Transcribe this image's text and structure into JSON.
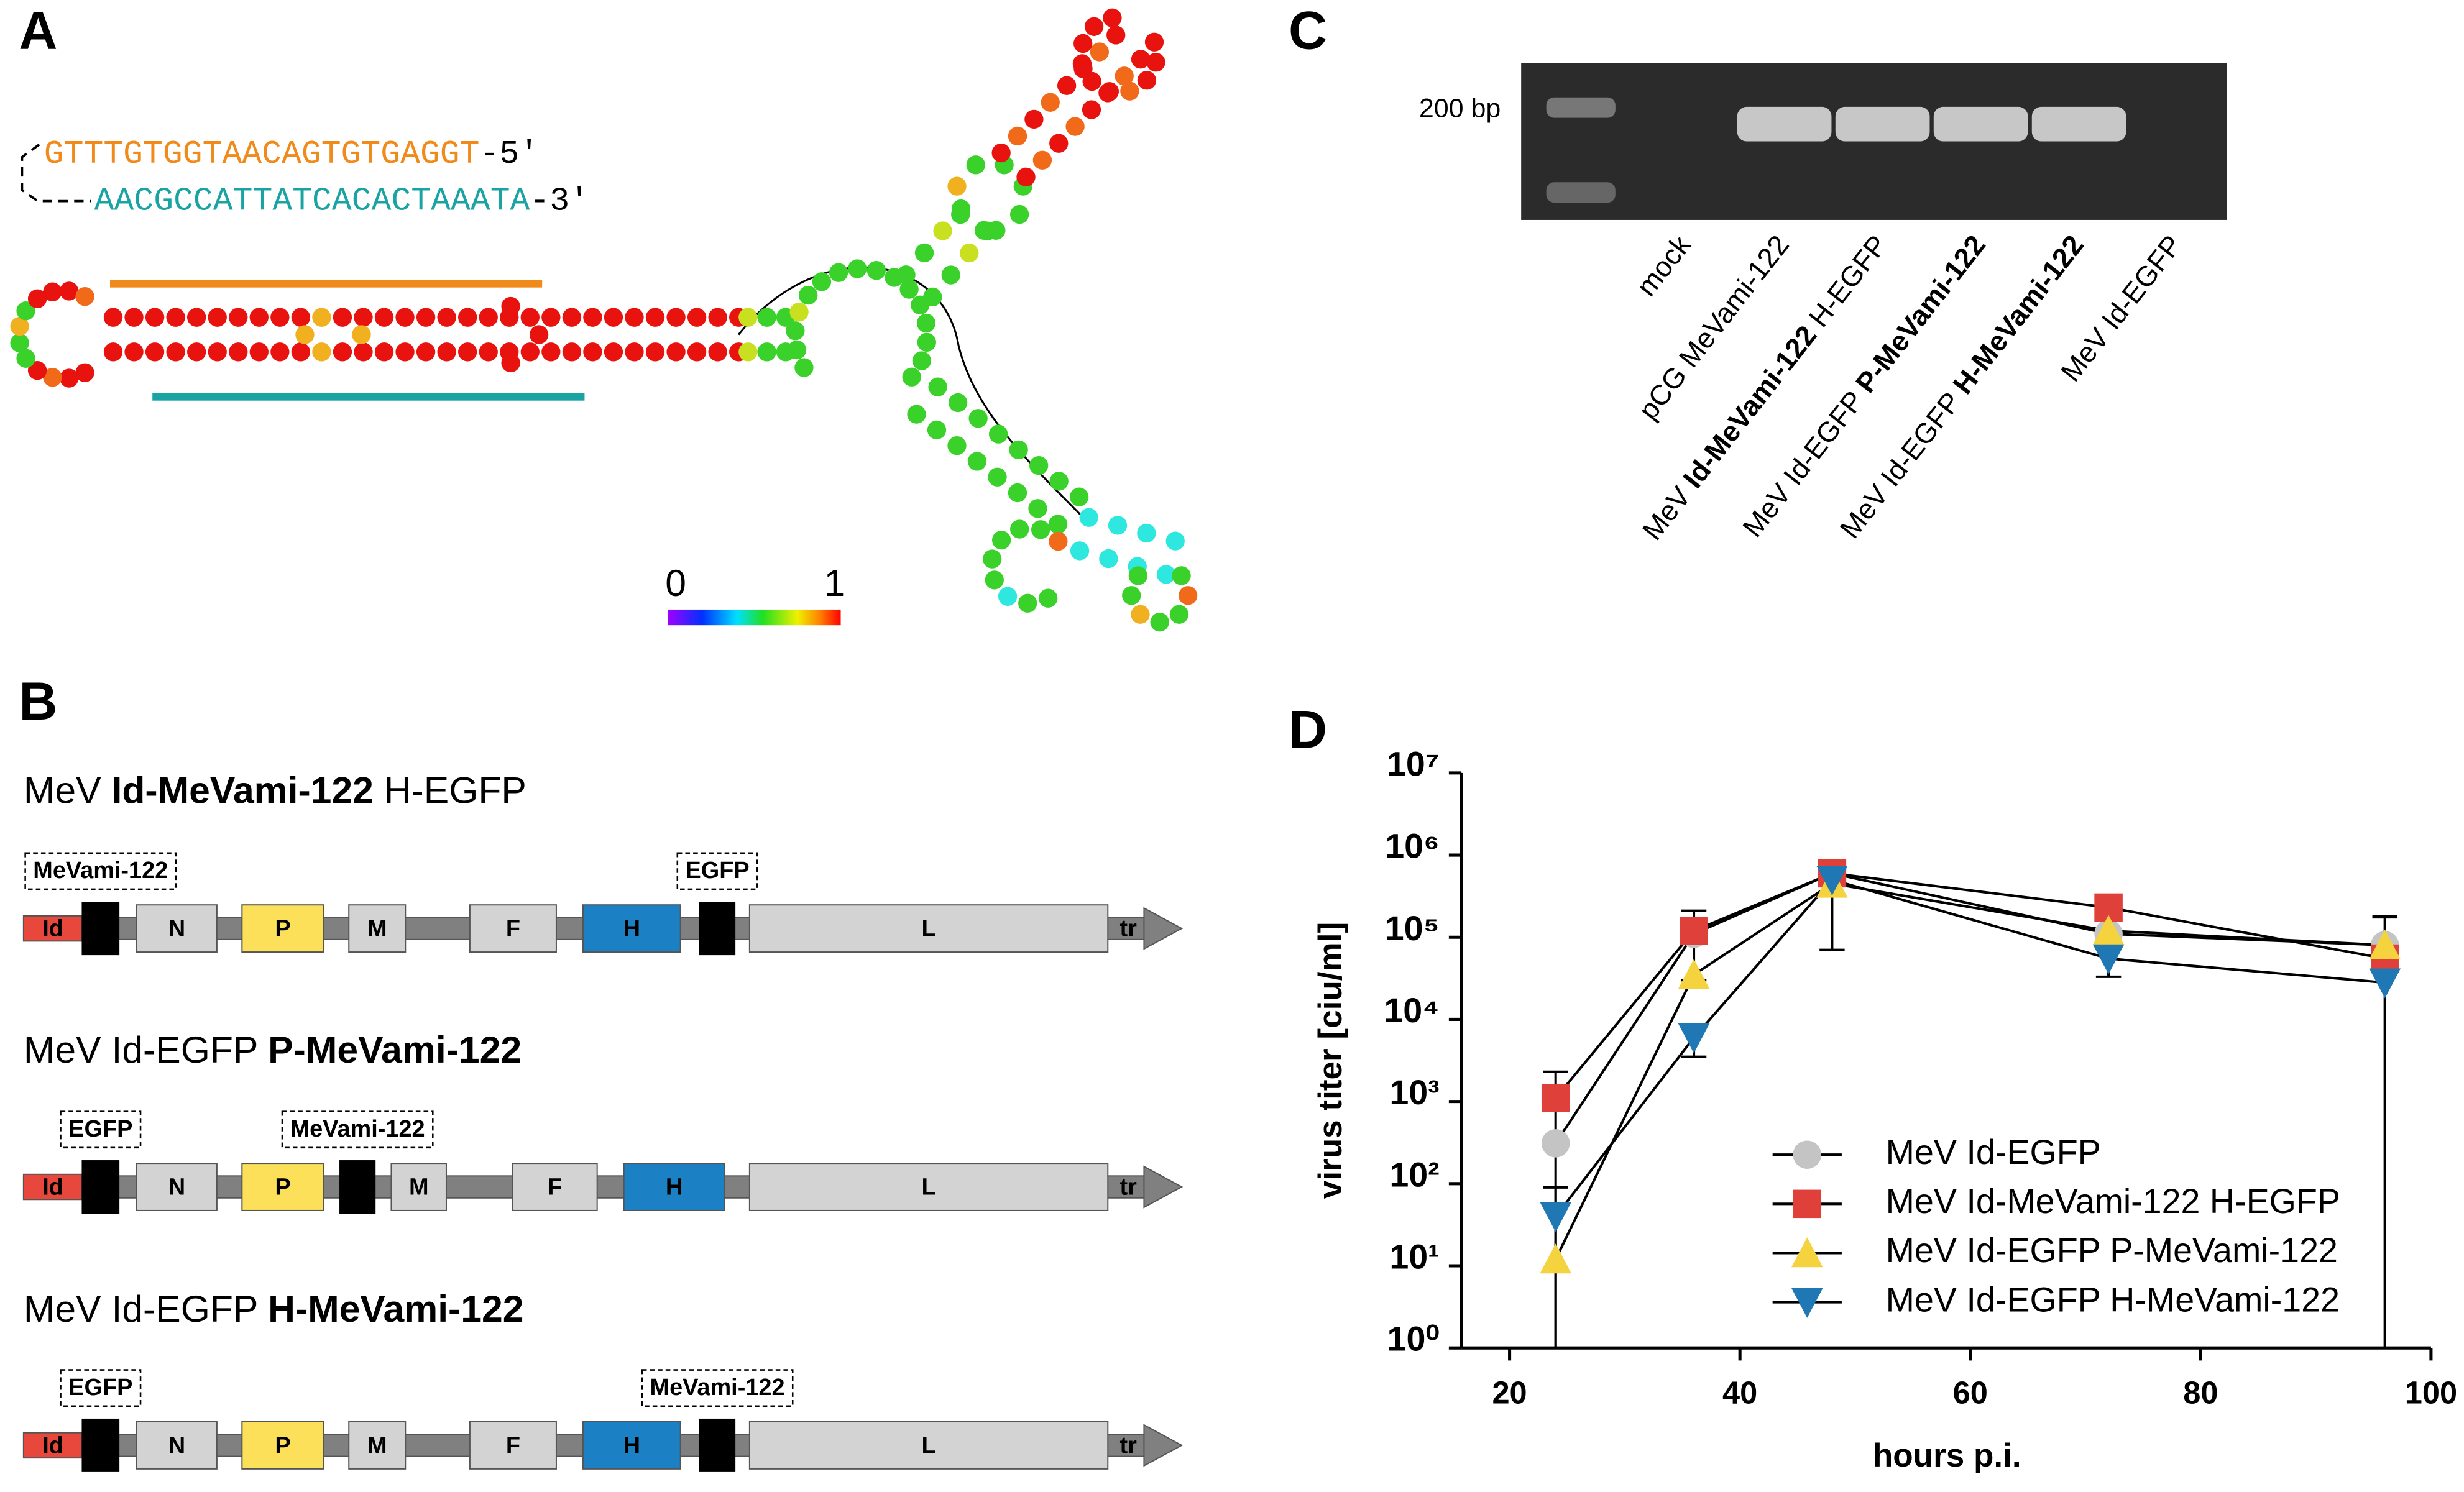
{
  "panel_labels": [
    "A",
    "B",
    "C",
    "D"
  ],
  "panel_a": {
    "strand_top": "GTTTGTGGTAACAGTGTGAGGT",
    "strand_top_end": "-5'",
    "strand_bottom": "AACGCCATTATCACACTAAATA",
    "strand_bottom_end": "-3'",
    "colorbar_ticks": [
      0,
      1
    ]
  },
  "panel_b": {
    "constructs": [
      {
        "title": [
          {
            "text": "MeV ",
            "bold": false
          },
          {
            "text": "Id-MeVami-122",
            "bold": true
          },
          {
            "text": " H-EGFP",
            "bold": false
          }
        ],
        "elements": [
          {
            "label": "Id",
            "color": "#e8473c"
          },
          {
            "insert": "MeVami-122"
          },
          {
            "label": "N",
            "color": "#d3d3d3"
          },
          {
            "label": "P",
            "color": "#fde05a"
          },
          {
            "label": "M",
            "color": "#d3d3d3"
          },
          {
            "label": "F",
            "color": "#d3d3d3"
          },
          {
            "label": "H",
            "color": "#1b80c4"
          },
          {
            "insert": "EGFP"
          },
          {
            "label": "L",
            "color": "#d3d3d3"
          },
          {
            "label": "tr"
          }
        ]
      },
      {
        "title": [
          {
            "text": "MeV Id-EGFP ",
            "bold": false
          },
          {
            "text": "P-MeVami-122",
            "bold": true
          }
        ],
        "elements": [
          {
            "label": "Id",
            "color": "#e8473c"
          },
          {
            "insert": "EGFP"
          },
          {
            "label": "N",
            "color": "#d3d3d3"
          },
          {
            "label": "P",
            "color": "#fde05a"
          },
          {
            "insert": "MeVami-122"
          },
          {
            "label": "M",
            "color": "#d3d3d3"
          },
          {
            "label": "F",
            "color": "#d3d3d3"
          },
          {
            "label": "H",
            "color": "#1b80c4"
          },
          {
            "label": "L",
            "color": "#d3d3d3"
          },
          {
            "label": "tr"
          }
        ]
      },
      {
        "title": [
          {
            "text": "MeV Id-EGFP ",
            "bold": false
          },
          {
            "text": "H-MeVami-122",
            "bold": true
          }
        ],
        "elements": [
          {
            "label": "Id",
            "color": "#e8473c"
          },
          {
            "insert": "EGFP"
          },
          {
            "label": "N",
            "color": "#d3d3d3"
          },
          {
            "label": "P",
            "color": "#fde05a"
          },
          {
            "label": "M",
            "color": "#d3d3d3"
          },
          {
            "label": "F",
            "color": "#d3d3d3"
          },
          {
            "label": "H",
            "color": "#1b80c4"
          },
          {
            "insert": "MeVami-122"
          },
          {
            "label": "L",
            "color": "#d3d3d3"
          },
          {
            "label": "tr"
          }
        ]
      }
    ]
  },
  "panel_c": {
    "marker": "200 bp",
    "lanes": [
      {
        "label": [
          {
            "text": "mock",
            "bold": false
          }
        ],
        "band": false
      },
      {
        "label": [
          {
            "text": "pCG MeVami-122",
            "bold": false
          }
        ],
        "band": true
      },
      {
        "label": [
          {
            "text": "MeV ",
            "bold": false
          },
          {
            "text": "Id-MeVami-122",
            "bold": true
          },
          {
            "text": " H-EGFP",
            "bold": false
          }
        ],
        "band": true
      },
      {
        "label": [
          {
            "text": "MeV Id-EGFP ",
            "bold": false
          },
          {
            "text": "P-MeVami-122",
            "bold": true
          }
        ],
        "band": true
      },
      {
        "label": [
          {
            "text": "MeV Id-EGFP ",
            "bold": false
          },
          {
            "text": "H-MeVami-122",
            "bold": true
          }
        ],
        "band": true
      },
      {
        "label": [
          {
            "text": "MeV Id-EGFP",
            "bold": false
          }
        ],
        "band": false
      }
    ]
  },
  "chart_data": {
    "type": "line",
    "x_label": "hours p.i.",
    "y_label": "virus titer [ciu/ml]",
    "x": [
      24,
      36,
      48,
      72,
      96
    ],
    "xlim": [
      15,
      100
    ],
    "xticks": [
      20,
      40,
      60,
      80,
      100
    ],
    "log_y": true,
    "ylim": [
      1,
      10000000
    ],
    "yticks": [
      {
        "value": 1,
        "label": "10⁰"
      },
      {
        "value": 10,
        "label": "10¹"
      },
      {
        "value": 100,
        "label": "10²"
      },
      {
        "value": 1000,
        "label": "10³"
      },
      {
        "value": 10000,
        "label": "10⁴"
      },
      {
        "value": 100000,
        "label": "10⁵"
      },
      {
        "value": 1000000,
        "label": "10⁶"
      },
      {
        "value": 10000000,
        "label": "10⁷"
      }
    ],
    "legend": "lower right",
    "series": [
      {
        "name": "MeV Id-EGFP",
        "color": "#c4c4c4",
        "marker": "circle",
        "values": [
          310,
          110000,
          600000,
          110000,
          80000
        ],
        "errors": [
          null,
          null,
          null,
          null,
          100000
        ]
      },
      {
        "name": "MeV Id-MeVami-122 H-EGFP",
        "color": "#e0403a",
        "marker": "square",
        "values": [
          1100,
          120000,
          600000,
          230000,
          55000
        ],
        "errors": [
          1200,
          90000,
          null,
          null,
          120000
        ]
      },
      {
        "name": "MeV Id-EGFP P-MeVami-122",
        "color": "#f5d33f",
        "marker": "triangle-up",
        "values": [
          12,
          35000,
          450000,
          120000,
          80000
        ],
        "errors": [
          null,
          null,
          380000,
          null,
          null
        ]
      },
      {
        "name": "MeV Id-EGFP H-MeVami-122",
        "color": "#1f77b4",
        "marker": "triangle-down",
        "values": [
          40,
          6000,
          500000,
          55000,
          28000
        ],
        "errors": [
          50,
          2500,
          null,
          22000,
          null
        ]
      }
    ]
  }
}
